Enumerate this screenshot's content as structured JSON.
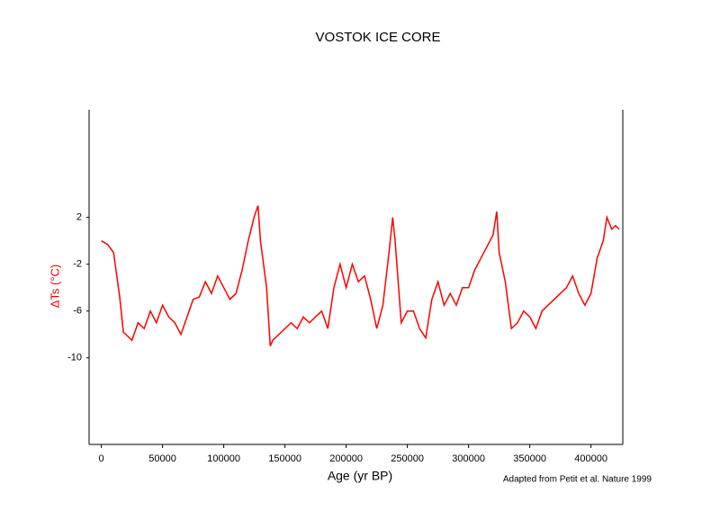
{
  "chart_data": {
    "type": "line",
    "title": "VOSTOK ICE CORE",
    "x_label": "Age (yr BP)",
    "y_label": "ΔTs (°C)",
    "annotation": "Adapted from Petit et al. Nature 1999",
    "color": "#ff0000",
    "x": [
      0,
      5000,
      10000,
      15000,
      18000,
      20000,
      25000,
      30000,
      35000,
      40000,
      45000,
      50000,
      55000,
      60000,
      65000,
      70000,
      75000,
      80000,
      85000,
      90000,
      95000,
      100000,
      105000,
      110000,
      115000,
      120000,
      125000,
      128000,
      130000,
      135000,
      138000,
      140000,
      145000,
      150000,
      155000,
      160000,
      165000,
      170000,
      175000,
      180000,
      185000,
      190000,
      195000,
      200000,
      205000,
      210000,
      215000,
      220000,
      225000,
      230000,
      235000,
      238000,
      240000,
      245000,
      250000,
      255000,
      260000,
      265000,
      270000,
      275000,
      280000,
      285000,
      290000,
      295000,
      300000,
      305000,
      310000,
      315000,
      320000,
      323000,
      325000,
      330000,
      335000,
      340000,
      345000,
      350000,
      355000,
      360000,
      365000,
      370000,
      375000,
      380000,
      385000,
      390000,
      395000,
      400000,
      405000,
      410000,
      413000,
      417000,
      420000,
      423000
    ],
    "values": [
      0,
      -0.3,
      -1,
      -4.8,
      -7.8,
      -8,
      -8.5,
      -7,
      -7.5,
      -6,
      -7,
      -5.5,
      -6.5,
      -7,
      -8,
      -6.5,
      -5,
      -4.8,
      -3.5,
      -4.5,
      -3,
      -4,
      -5,
      -4.5,
      -2.5,
      0,
      2.1,
      3,
      0,
      -4,
      -9,
      -8.5,
      -8,
      -7.5,
      -7,
      -7.5,
      -6.5,
      -7,
      -6.5,
      -6,
      -7.5,
      -4,
      -2,
      -4,
      -2,
      -3.5,
      -3,
      -5,
      -7.5,
      -5.5,
      -1,
      2,
      0,
      -7,
      -6,
      -6,
      -7.5,
      -8.3,
      -5,
      -3.5,
      -5.5,
      -4.5,
      -5.5,
      -4,
      -4,
      -2.5,
      -1.5,
      -0.5,
      0.5,
      2.5,
      -1,
      -3.5,
      -7.5,
      -7,
      -6,
      -6.5,
      -7.5,
      -6,
      -5.5,
      -5,
      -4.5,
      -4,
      -3,
      -4.5,
      -5.5,
      -4.5,
      -1.5,
      0,
      2,
      1,
      1.3,
      1
    ],
    "xlim": [
      -10000,
      426000
    ],
    "xticks": [
      0,
      50000,
      100000,
      150000,
      200000,
      250000,
      300000,
      350000,
      400000
    ],
    "ylim": [
      -17.4,
      11.2
    ],
    "yticks": [
      2,
      -2,
      -6,
      -10
    ]
  }
}
